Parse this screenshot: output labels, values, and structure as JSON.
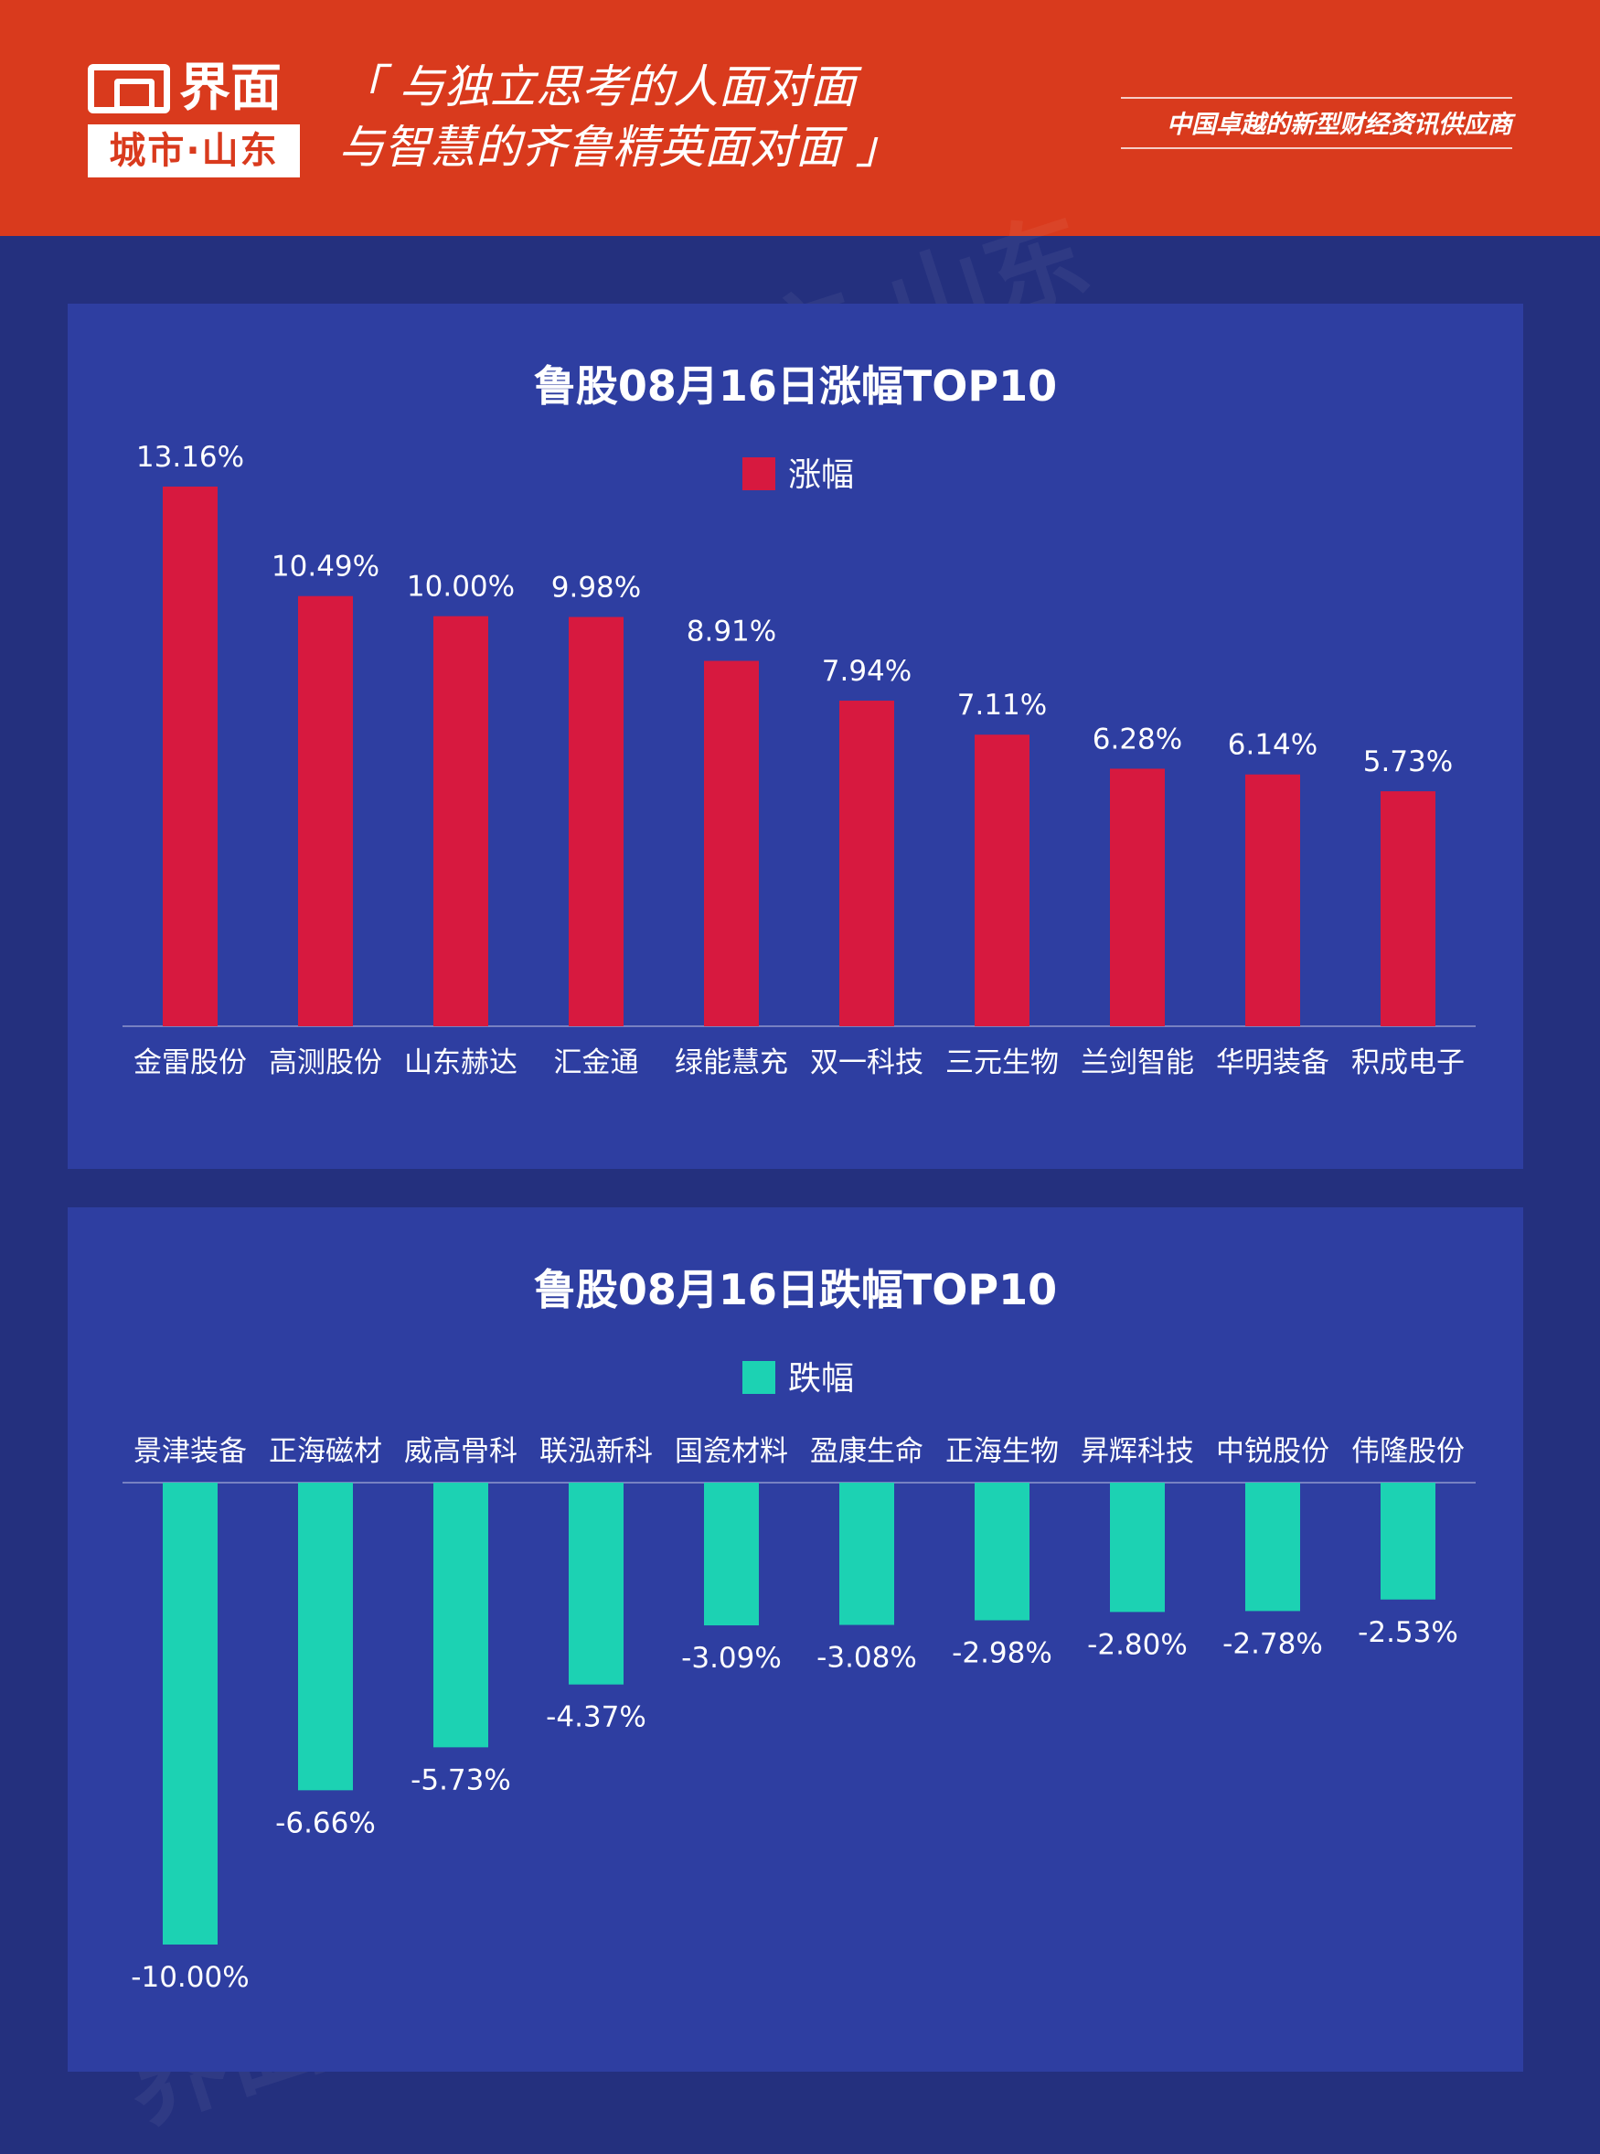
{
  "header": {
    "logo_name": "界面",
    "logo_sub": "城市·山东",
    "slogan_line1": "「 与独立思考的人面对面",
    "slogan_line2": "与智慧的齐鲁精英面对面 」",
    "tagline": "中国卓越的新型财经资讯供应商",
    "background": "#d93a1d"
  },
  "watermark": {
    "text": "界面 城市·山东"
  },
  "colors": {
    "page_background": "#24307e",
    "panel_background": "#2e3ea1",
    "gain_bar": "#d7193f",
    "loss_bar": "#1cd2b3"
  },
  "chart_data": [
    {
      "type": "bar",
      "title": "鲁股08月16日涨幅TOP10",
      "categories": [
        "金雷股份",
        "高测股份",
        "山东赫达",
        "汇金通",
        "绿能慧充",
        "双一科技",
        "三元生物",
        "兰剑智能",
        "华明装备",
        "积成电子"
      ],
      "series": [
        {
          "name": "涨幅",
          "values": [
            13.16,
            10.49,
            10.0,
            9.98,
            8.91,
            7.94,
            7.11,
            6.28,
            6.14,
            5.73
          ],
          "labels": [
            "13.16%",
            "10.49%",
            "10.00%",
            "9.98%",
            "8.91%",
            "7.94%",
            "7.11%",
            "6.28%",
            "6.14%",
            "5.73%"
          ],
          "color": "#d7193f"
        }
      ],
      "ylim": [
        0,
        13.16
      ],
      "legend": "top-center",
      "grid": false
    },
    {
      "type": "bar",
      "title": "鲁股08月16日跌幅TOP10",
      "categories": [
        "景津装备",
        "正海磁材",
        "威高骨科",
        "联泓新科",
        "国瓷材料",
        "盈康生命",
        "正海生物",
        "昇辉科技",
        "中锐股份",
        "伟隆股份"
      ],
      "series": [
        {
          "name": "跌幅",
          "values": [
            -10.0,
            -6.66,
            -5.73,
            -4.37,
            -3.09,
            -3.08,
            -2.98,
            -2.8,
            -2.78,
            -2.53
          ],
          "labels": [
            "-10.00%",
            "-6.66%",
            "-5.73%",
            "-4.37%",
            "-3.09%",
            "-3.08%",
            "-2.98%",
            "-2.80%",
            "-2.78%",
            "-2.53%"
          ],
          "color": "#1cd2b3"
        }
      ],
      "ylim": [
        -10.0,
        0
      ],
      "legend": "top-center",
      "grid": false
    }
  ]
}
